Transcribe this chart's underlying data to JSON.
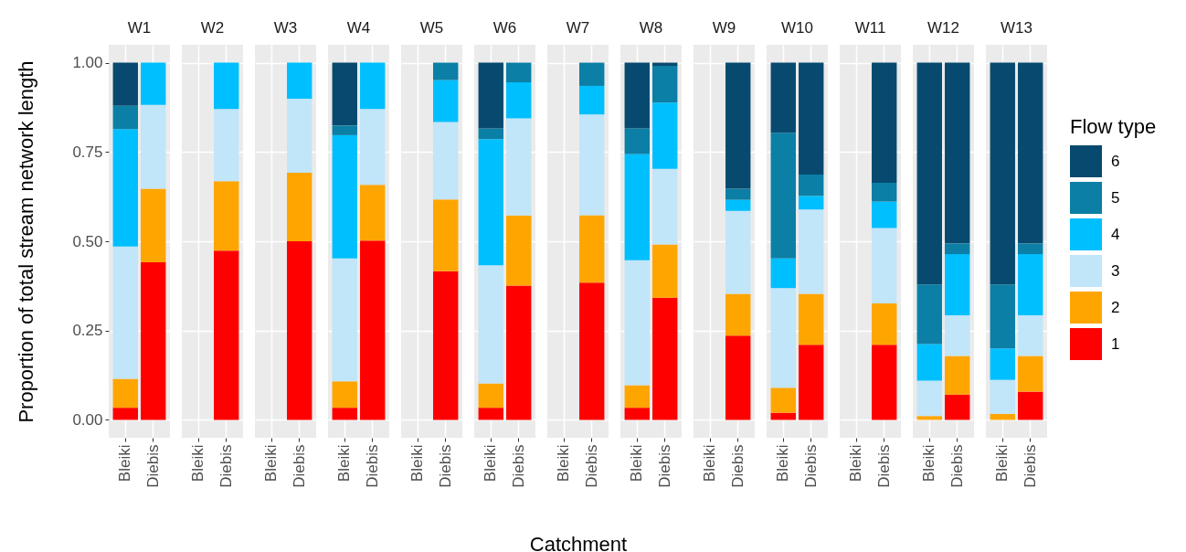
{
  "chart_data": [
    {
      "type": "bar",
      "stacked": true,
      "title": "W1",
      "ylabel": "Proportion of total stream network length",
      "categories": [
        "Bleiki",
        "Diebis"
      ],
      "ylim": [
        -0.05,
        1.05
      ],
      "yticks": [
        {
          "value": 0,
          "label": "0.00"
        },
        0.25,
        {
          "value": 0.5,
          "label": "0.50"
        },
        0.75,
        {
          "value": 1,
          "label": "1.00"
        }
      ],
      "grid": true,
      "series": [
        {
          "color": "#ff0000",
          "values": [
            0.034,
            0.441
          ]
        },
        {
          "color": "#ffa500",
          "values": [
            0.081,
            0.206
          ]
        },
        {
          "color": "#c1e5f9",
          "values": [
            0.37,
            0.235
          ]
        },
        {
          "color": "#00bfff",
          "values": [
            0.329,
            0.118
          ]
        },
        {
          "color": "#0b7fa5",
          "values": [
            0.065,
            null
          ]
        },
        {
          "color": "#084a6f",
          "values": [
            0.121,
            null
          ]
        }
      ]
    },
    {
      "type": "bar",
      "stacked": true,
      "title": "W2",
      "categories": [
        "Bleiki",
        "Diebis"
      ],
      "ylim": [
        -0.05,
        1.05
      ],
      "yticks": [
        0,
        0.25,
        0.5,
        0.75,
        1
      ],
      "tick_labels": "x",
      "grid": true,
      "series": [
        {
          "color": "#ff0000",
          "values": [
            null,
            0.474
          ]
        },
        {
          "color": "#ffa500",
          "values": [
            null,
            0.194
          ]
        },
        {
          "color": "#c1e5f9",
          "values": [
            null,
            0.202
          ]
        },
        {
          "color": "#00bfff",
          "values": [
            null,
            0.13
          ]
        }
      ]
    },
    {
      "type": "bar",
      "stacked": true,
      "title": "W3",
      "categories": [
        "Bleiki",
        "Diebis"
      ],
      "ylim": [
        -0.05,
        1.05
      ],
      "yticks": [
        0,
        0.25,
        0.5,
        0.75,
        1
      ],
      "tick_labels": "x",
      "grid": true,
      "series": [
        {
          "color": "#ff0000",
          "values": [
            null,
            0.5
          ]
        },
        {
          "color": "#ffa500",
          "values": [
            null,
            0.192
          ]
        },
        {
          "color": "#c1e5f9",
          "values": [
            null,
            0.207
          ]
        },
        {
          "color": "#00bfff",
          "values": [
            null,
            0.101
          ]
        }
      ]
    },
    {
      "type": "bar",
      "stacked": true,
      "title": "W4",
      "categories": [
        "Bleiki",
        "Diebis"
      ],
      "ylim": [
        -0.05,
        1.05
      ],
      "yticks": [
        0,
        0.25,
        0.5,
        0.75,
        1
      ],
      "tick_labels": "x",
      "grid": true,
      "series": [
        {
          "color": "#ff0000",
          "values": [
            0.034,
            0.502
          ]
        },
        {
          "color": "#ffa500",
          "values": [
            0.074,
            0.156
          ]
        },
        {
          "color": "#c1e5f9",
          "values": [
            0.344,
            0.212
          ]
        },
        {
          "color": "#00bfff",
          "values": [
            0.345,
            0.13
          ]
        },
        {
          "color": "#0b7fa5",
          "values": [
            0.027,
            null
          ]
        },
        {
          "color": "#084a6f",
          "values": [
            0.176,
            null
          ]
        }
      ]
    },
    {
      "type": "bar",
      "stacked": true,
      "title": "W5",
      "categories": [
        "Bleiki",
        "Diebis"
      ],
      "ylim": [
        -0.05,
        1.05
      ],
      "yticks": [
        0,
        0.25,
        0.5,
        0.75,
        1
      ],
      "tick_labels": "x",
      "grid": true,
      "series": [
        {
          "color": "#ff0000",
          "values": [
            null,
            0.416
          ]
        },
        {
          "color": "#ffa500",
          "values": [
            null,
            0.201
          ]
        },
        {
          "color": "#c1e5f9",
          "values": [
            null,
            0.217
          ]
        },
        {
          "color": "#00bfff",
          "values": [
            null,
            0.117
          ]
        },
        {
          "color": "#0b7fa5",
          "values": [
            null,
            0.049
          ]
        }
      ]
    },
    {
      "type": "bar",
      "stacked": true,
      "title": "W6",
      "categories": [
        "Bleiki",
        "Diebis"
      ],
      "ylim": [
        -0.05,
        1.05
      ],
      "yticks": [
        0,
        0.25,
        0.5,
        0.75,
        1
      ],
      "tick_labels": "x",
      "grid": true,
      "series": [
        {
          "color": "#ff0000",
          "values": [
            0.034,
            0.376
          ]
        },
        {
          "color": "#ffa500",
          "values": [
            0.068,
            0.196
          ]
        },
        {
          "color": "#c1e5f9",
          "values": [
            0.331,
            0.272
          ]
        },
        {
          "color": "#00bfff",
          "values": [
            0.353,
            0.101
          ]
        },
        {
          "color": "#0b7fa5",
          "values": [
            0.03,
            0.055
          ]
        },
        {
          "color": "#084a6f",
          "values": [
            0.184,
            null
          ]
        }
      ]
    },
    {
      "type": "bar",
      "stacked": true,
      "title": "W7",
      "xlabel": "Catchment",
      "categories": [
        "Bleiki",
        "Diebis"
      ],
      "ylim": [
        -0.05,
        1.05
      ],
      "yticks": [
        0,
        0.25,
        0.5,
        0.75,
        1
      ],
      "tick_labels": "x",
      "grid": true,
      "series": [
        {
          "color": "#ff0000",
          "values": [
            null,
            0.384
          ]
        },
        {
          "color": "#ffa500",
          "values": [
            null,
            0.189
          ]
        },
        {
          "color": "#c1e5f9",
          "values": [
            null,
            0.282
          ]
        },
        {
          "color": "#00bfff",
          "values": [
            null,
            0.08
          ]
        },
        {
          "color": "#0b7fa5",
          "values": [
            null,
            0.065
          ]
        }
      ]
    },
    {
      "type": "bar",
      "stacked": true,
      "title": "W8",
      "categories": [
        "Bleiki",
        "Diebis"
      ],
      "ylim": [
        -0.05,
        1.05
      ],
      "yticks": [
        0,
        0.25,
        0.5,
        0.75,
        1
      ],
      "tick_labels": "x",
      "grid": true,
      "series": [
        {
          "color": "#ff0000",
          "values": [
            0.034,
            0.342
          ]
        },
        {
          "color": "#ffa500",
          "values": [
            0.063,
            0.149
          ]
        },
        {
          "color": "#c1e5f9",
          "values": [
            0.35,
            0.212
          ]
        },
        {
          "color": "#00bfff",
          "values": [
            0.297,
            0.185
          ]
        },
        {
          "color": "#0b7fa5",
          "values": [
            0.072,
            0.103
          ]
        },
        {
          "color": "#084a6f",
          "values": [
            0.184,
            0.009
          ]
        }
      ]
    },
    {
      "type": "bar",
      "stacked": true,
      "title": "W9",
      "categories": [
        "Bleiki",
        "Diebis"
      ],
      "ylim": [
        -0.05,
        1.05
      ],
      "yticks": [
        0,
        0.25,
        0.5,
        0.75,
        1
      ],
      "tick_labels": "x",
      "grid": true,
      "series": [
        {
          "color": "#ff0000",
          "values": [
            null,
            0.236
          ]
        },
        {
          "color": "#ffa500",
          "values": [
            null,
            0.117
          ]
        },
        {
          "color": "#c1e5f9",
          "values": [
            null,
            0.232
          ]
        },
        {
          "color": "#00bfff",
          "values": [
            null,
            0.031
          ]
        },
        {
          "color": "#0b7fa5",
          "values": [
            null,
            0.031
          ]
        },
        {
          "color": "#084a6f",
          "values": [
            null,
            0.353
          ]
        }
      ]
    },
    {
      "type": "bar",
      "stacked": true,
      "title": "W10",
      "categories": [
        "Bleiki",
        "Diebis"
      ],
      "ylim": [
        -0.05,
        1.05
      ],
      "yticks": [
        0,
        0.25,
        0.5,
        0.75,
        1
      ],
      "tick_labels": "x",
      "grid": true,
      "series": [
        {
          "color": "#ff0000",
          "values": [
            0.02,
            0.21
          ]
        },
        {
          "color": "#ffa500",
          "values": [
            0.07,
            0.143
          ]
        },
        {
          "color": "#c1e5f9",
          "values": [
            0.279,
            0.236
          ]
        },
        {
          "color": "#00bfff",
          "values": [
            0.083,
            0.038
          ]
        },
        {
          "color": "#0b7fa5",
          "values": [
            0.352,
            0.06
          ]
        },
        {
          "color": "#084a6f",
          "values": [
            0.196,
            0.313
          ]
        }
      ]
    },
    {
      "type": "bar",
      "stacked": true,
      "title": "W11",
      "categories": [
        "Bleiki",
        "Diebis"
      ],
      "ylim": [
        -0.05,
        1.05
      ],
      "yticks": [
        0,
        0.25,
        0.5,
        0.75,
        1
      ],
      "tick_labels": "x",
      "grid": true,
      "series": [
        {
          "color": "#ff0000",
          "values": [
            null,
            0.21
          ]
        },
        {
          "color": "#ffa500",
          "values": [
            null,
            0.116
          ]
        },
        {
          "color": "#c1e5f9",
          "values": [
            null,
            0.211
          ]
        },
        {
          "color": "#00bfff",
          "values": [
            null,
            0.074
          ]
        },
        {
          "color": "#0b7fa5",
          "values": [
            null,
            0.053
          ]
        },
        {
          "color": "#084a6f",
          "values": [
            null,
            0.336
          ]
        }
      ]
    },
    {
      "type": "bar",
      "stacked": true,
      "title": "W12",
      "categories": [
        "Bleiki",
        "Diebis"
      ],
      "ylim": [
        -0.05,
        1.05
      ],
      "yticks": [
        0,
        0.25,
        0.5,
        0.75,
        1
      ],
      "tick_labels": "x",
      "grid": true,
      "series": [
        {
          "color": "#ff0000",
          "values": [
            null,
            0.071
          ]
        },
        {
          "color": "#ffa500",
          "values": [
            0.011,
            0.108
          ]
        },
        {
          "color": "#c1e5f9",
          "values": [
            0.099,
            0.114
          ]
        },
        {
          "color": "#00bfff",
          "values": [
            0.102,
            0.171
          ]
        },
        {
          "color": "#0b7fa5",
          "values": [
            0.167,
            0.03
          ]
        },
        {
          "color": "#084a6f",
          "values": [
            0.621,
            0.506
          ]
        }
      ]
    },
    {
      "type": "bar",
      "stacked": true,
      "title": "W13",
      "legend_title": "Flow type",
      "legend": "right",
      "categories": [
        "Bleiki",
        "Diebis"
      ],
      "ylim": [
        -0.05,
        1.05
      ],
      "yticks": [
        0,
        0.25,
        0.5,
        0.75,
        1
      ],
      "tick_labels": "x",
      "grid": true,
      "series": [
        {
          "name": "1",
          "color": "#ff0000",
          "values": [
            null,
            0.079
          ]
        },
        {
          "name": "2",
          "color": "#ffa500",
          "values": [
            0.017,
            0.1
          ]
        },
        {
          "name": "3",
          "color": "#c1e5f9",
          "values": [
            0.095,
            0.114
          ]
        },
        {
          "name": "4",
          "color": "#00bfff",
          "values": [
            0.088,
            0.171
          ]
        },
        {
          "name": "5",
          "color": "#0b7fa5",
          "values": [
            0.179,
            0.03
          ]
        },
        {
          "name": "6",
          "color": "#084a6f",
          "values": [
            0.621,
            0.506
          ]
        }
      ]
    }
  ]
}
